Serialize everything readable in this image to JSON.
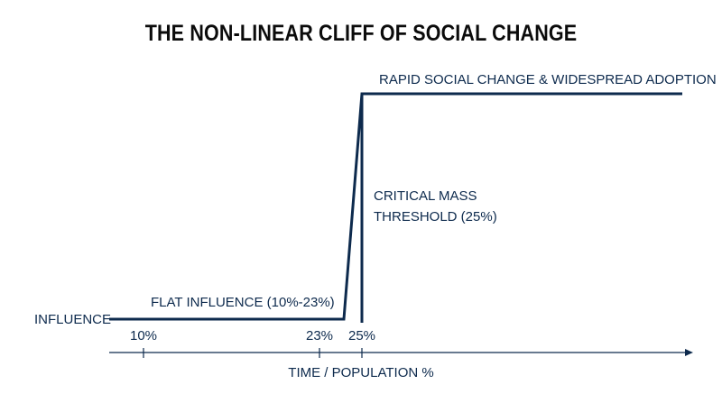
{
  "title": "THE NON-LINEAR CLIFF OF SOCIAL CHANGE",
  "y_label": "INFLUENCE",
  "x_label": "TIME / POPULATION %",
  "colors": {
    "line": "#0d2a4d",
    "title": "#0b0b0b"
  },
  "chart_data": {
    "type": "line",
    "title": "THE NON-LINEAR CLIFF OF SOCIAL CHANGE",
    "xlabel": "TIME / POPULATION %",
    "ylabel": "INFLUENCE",
    "x_ticks": [
      "10%",
      "23%",
      "25%"
    ],
    "annotations": {
      "flat": "FLAT INFLUENCE (10%-23%)",
      "threshold_line1": "CRITICAL MASS",
      "threshold_line2": "THRESHOLD (25%)",
      "rapid": "RAPID SOCIAL CHANGE & WIDESPREAD ADOPTION"
    }
  }
}
